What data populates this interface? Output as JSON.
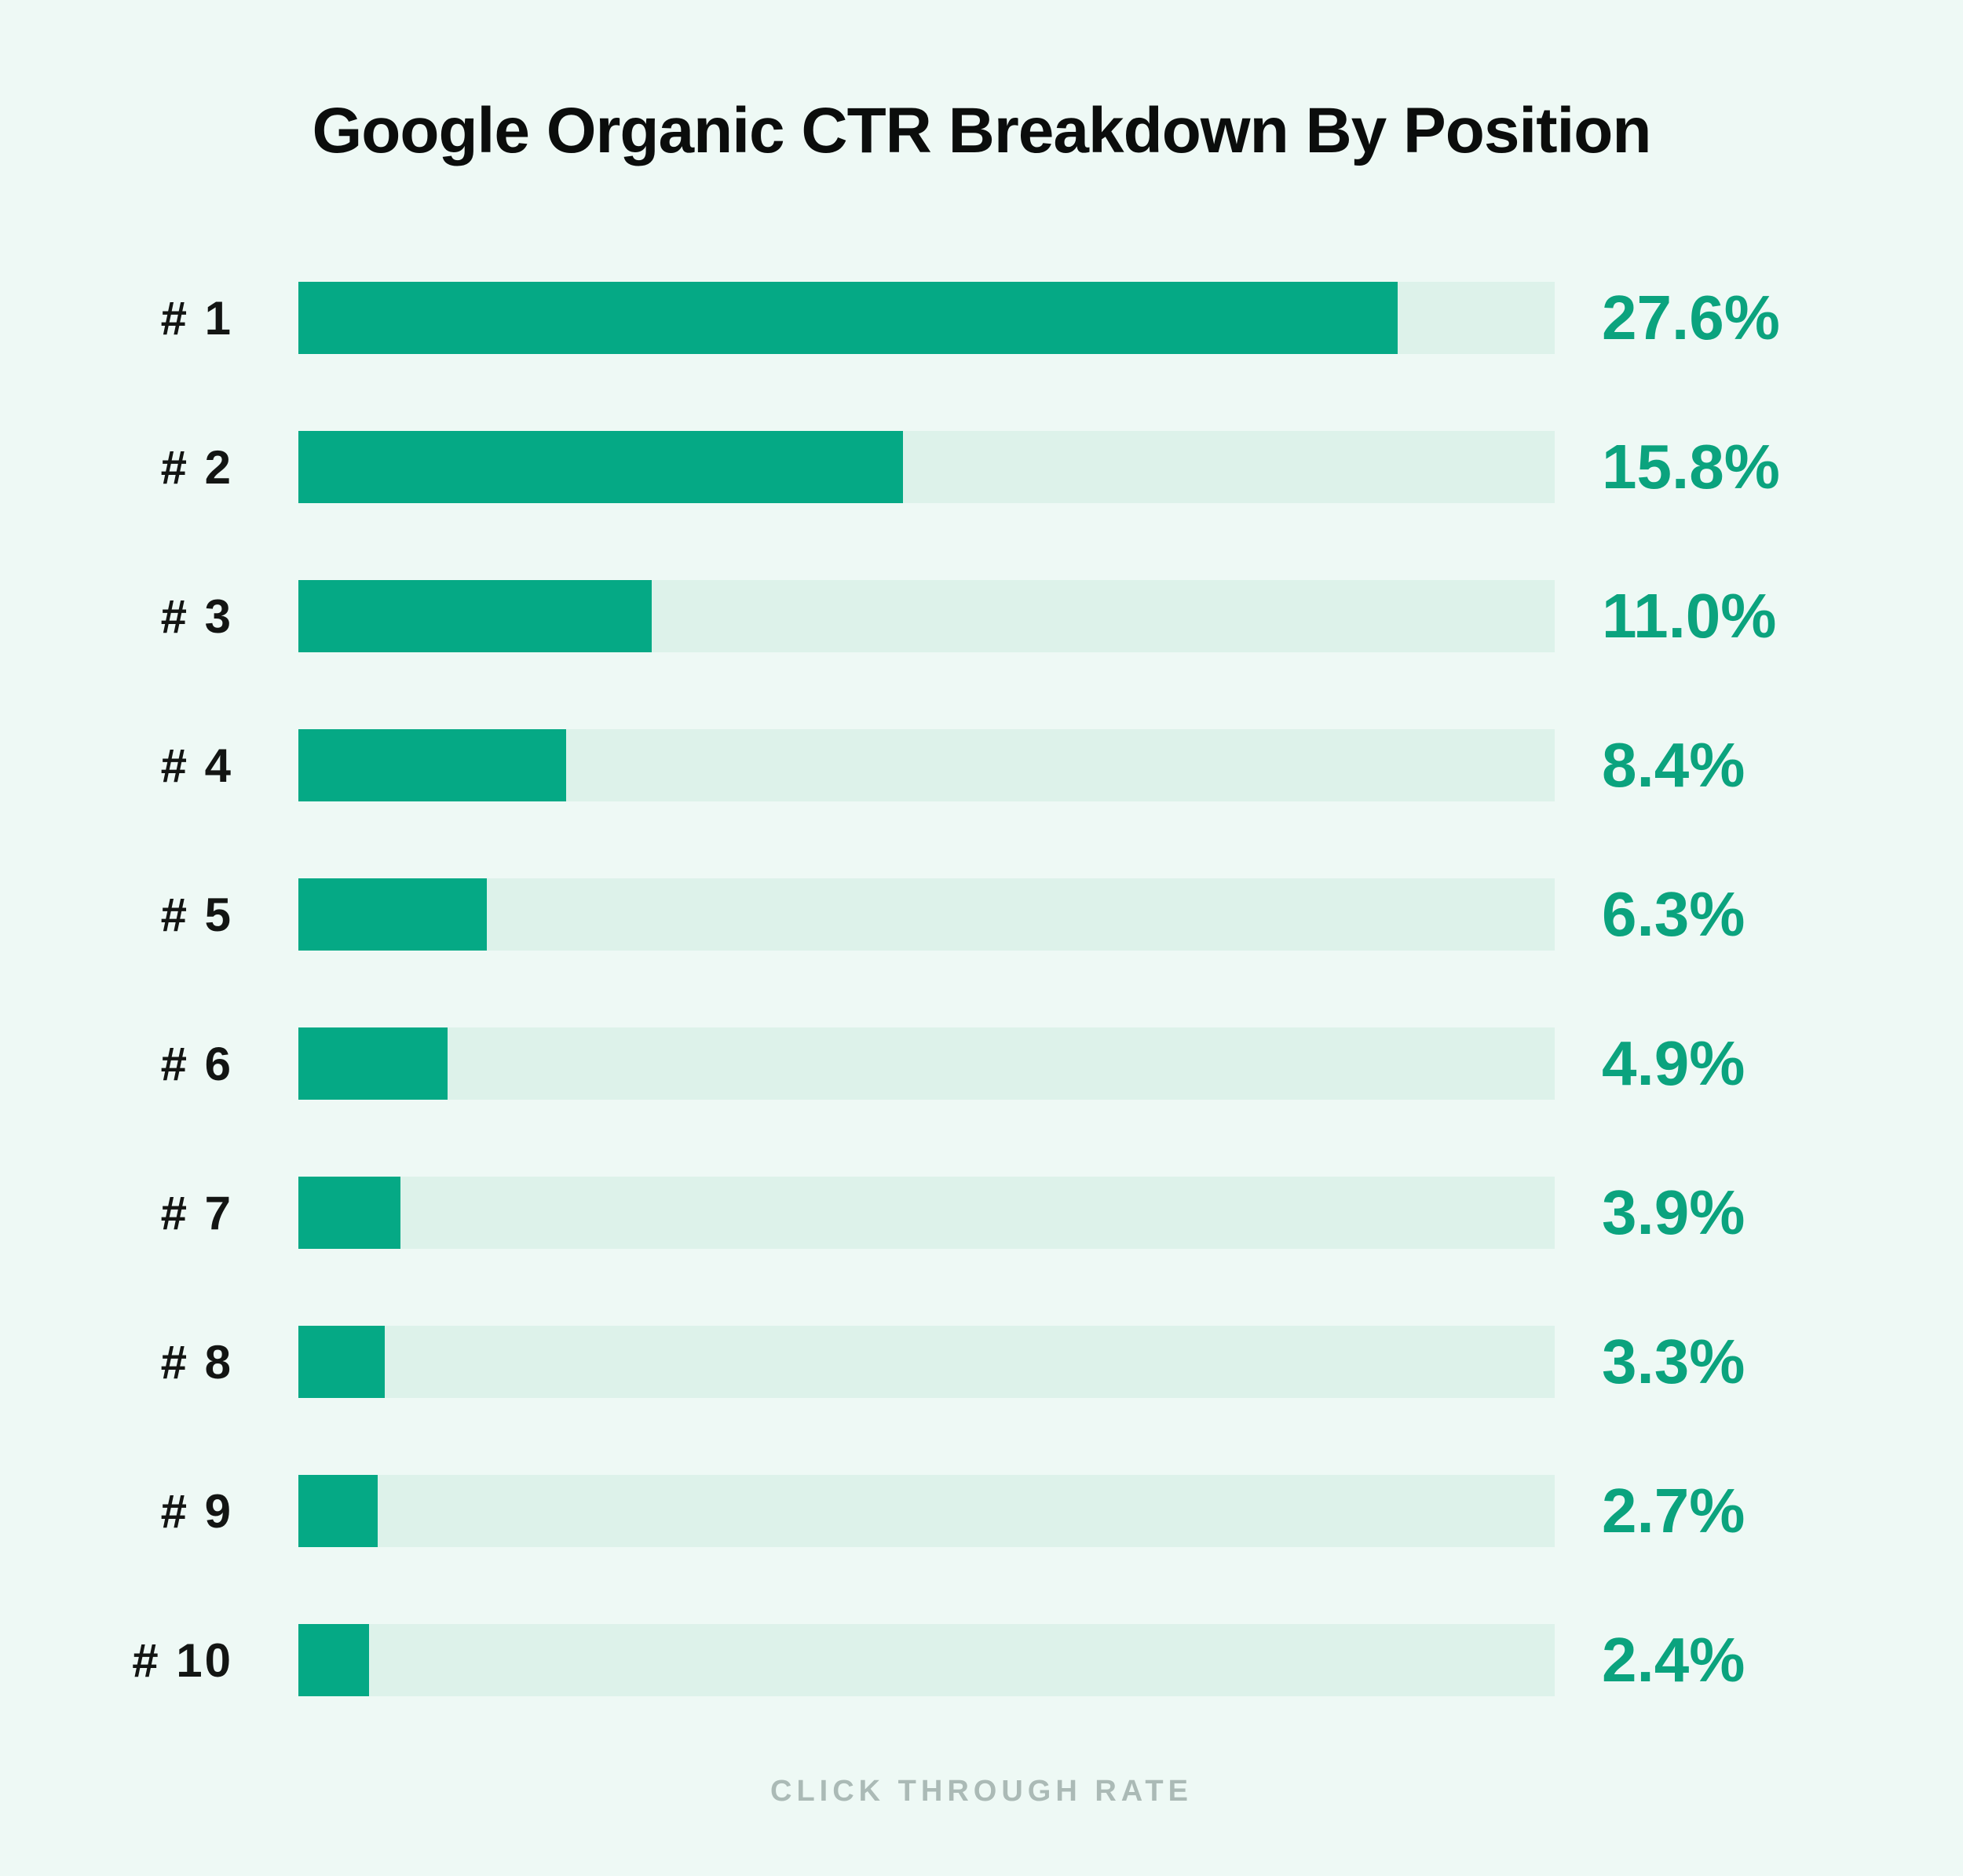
{
  "page": {
    "title": "Google Organic CTR Breakdown By Position",
    "footer_label": "CLICK THROUGH RATE"
  },
  "colors": {
    "background": "#eef9f5",
    "bar_fill": "#05a985",
    "bar_track": "#ddf2ea",
    "value_text": "#0ba37e",
    "title_text": "#0b0d0c",
    "label_text": "#131513",
    "footer_text": "#abbab6"
  },
  "chart_data": {
    "type": "bar",
    "orientation": "horizontal",
    "title": "Google Organic CTR Breakdown By Position",
    "xlabel": "CLICK THROUGH RATE",
    "ylabel": "",
    "unit": "%",
    "grid": false,
    "legend": false,
    "categories": [
      "# 1",
      "# 2",
      "# 3",
      "# 4",
      "# 5",
      "# 6",
      "# 7",
      "# 8",
      "# 9",
      "# 10"
    ],
    "values": [
      27.6,
      15.8,
      11.0,
      8.4,
      6.3,
      4.9,
      3.9,
      3.3,
      2.7,
      2.4
    ],
    "value_labels": [
      "27.6%",
      "15.8%",
      "11.0%",
      "8.4%",
      "6.3%",
      "4.9%",
      "3.9%",
      "3.3%",
      "2.7%",
      "2.4%"
    ],
    "bar_fill_pct_of_track": [
      87.5,
      48.1,
      28.1,
      21.3,
      15.0,
      11.9,
      8.1,
      6.9,
      6.3,
      5.6
    ]
  }
}
